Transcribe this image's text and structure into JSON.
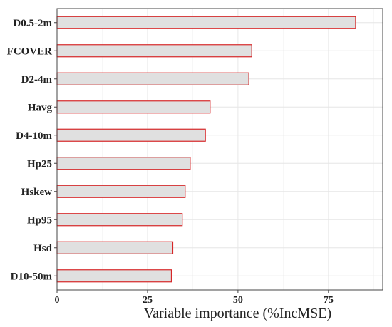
{
  "chart_data": {
    "type": "bar",
    "orientation": "horizontal",
    "categories": [
      "D0.5-2m",
      "FCOVER",
      "D2-4m",
      "Havg",
      "D4-10m",
      "Hp25",
      "Hskew",
      "Hp95",
      "Hsd",
      "D10-50m"
    ],
    "values": [
      82.5,
      53.8,
      53.0,
      42.3,
      41.0,
      36.8,
      35.4,
      34.6,
      32.0,
      31.6
    ],
    "xlabel": "Variable importance (%IncMSE)",
    "ylabel": "",
    "title": "",
    "xlim": [
      0,
      90
    ],
    "xticks": [
      0,
      25,
      50,
      75
    ],
    "grid": true,
    "bar_fill": "#e0e0e0",
    "bar_stroke": "#d62728"
  }
}
